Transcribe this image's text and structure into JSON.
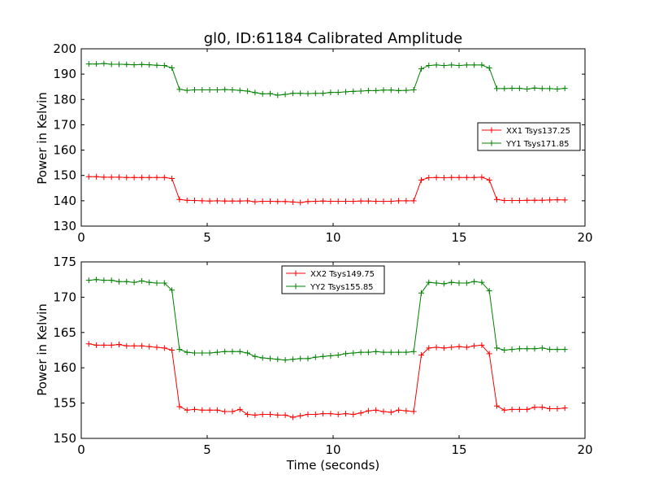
{
  "chart_data": [
    {
      "type": "line",
      "title": "gl0, ID:61184 Calibrated Amplitude",
      "xlabel": "",
      "ylabel": "Power in Kelvin",
      "xlim": [
        0,
        20
      ],
      "ylim": [
        130,
        200
      ],
      "xticks": [
        0,
        5,
        10,
        15,
        20
      ],
      "yticks": [
        130,
        140,
        150,
        160,
        170,
        180,
        190,
        200
      ],
      "grid": false,
      "legend_position": "center-right",
      "x": [
        0.3,
        0.6,
        0.9,
        1.2,
        1.5,
        1.8,
        2.1,
        2.4,
        2.7,
        3.0,
        3.3,
        3.6,
        3.9,
        4.2,
        4.5,
        4.8,
        5.1,
        5.4,
        5.7,
        6.0,
        6.3,
        6.6,
        6.9,
        7.2,
        7.5,
        7.8,
        8.1,
        8.4,
        8.7,
        9.0,
        9.3,
        9.6,
        9.9,
        10.2,
        10.5,
        10.8,
        11.1,
        11.4,
        11.7,
        12.0,
        12.3,
        12.6,
        12.9,
        13.2,
        13.5,
        13.8,
        14.1,
        14.4,
        14.7,
        15.0,
        15.3,
        15.6,
        15.9,
        16.2,
        16.5,
        16.8,
        17.1,
        17.4,
        17.7,
        18.0,
        18.3,
        18.6,
        18.9,
        19.2
      ],
      "series": [
        {
          "name": "XX1 Tsys137.25",
          "color": "#ff0000",
          "values": [
            149.5,
            149.5,
            149.3,
            149.3,
            149.3,
            149.2,
            149.2,
            149.2,
            149.2,
            149.2,
            149.2,
            148.8,
            140.5,
            140.2,
            140.1,
            140.0,
            139.9,
            140.0,
            139.9,
            139.9,
            139.9,
            140.0,
            139.6,
            139.8,
            139.8,
            139.7,
            139.7,
            139.5,
            139.3,
            139.7,
            139.8,
            139.9,
            139.8,
            139.8,
            139.8,
            139.8,
            139.9,
            139.9,
            139.8,
            139.8,
            139.8,
            140.0,
            140.0,
            140.0,
            148.2,
            149.1,
            149.2,
            149.1,
            149.2,
            149.2,
            149.2,
            149.2,
            149.3,
            148.2,
            140.5,
            140.1,
            140.1,
            140.1,
            140.2,
            140.2,
            140.2,
            140.3,
            140.4,
            140.3
          ]
        },
        {
          "name": "YY1 Tsys171.85",
          "color": "#008000",
          "values": [
            194.0,
            194.0,
            194.2,
            193.9,
            193.9,
            193.8,
            193.7,
            193.8,
            193.7,
            193.5,
            193.4,
            192.5,
            184.0,
            183.6,
            183.8,
            183.8,
            183.8,
            183.8,
            183.9,
            183.8,
            183.6,
            183.3,
            182.7,
            182.2,
            182.3,
            181.7,
            182.0,
            182.4,
            182.4,
            182.3,
            182.4,
            182.4,
            182.8,
            182.8,
            183.0,
            183.2,
            183.3,
            183.5,
            183.5,
            183.7,
            183.7,
            183.5,
            183.6,
            183.8,
            192.1,
            193.4,
            193.6,
            193.4,
            193.6,
            193.4,
            193.6,
            193.6,
            193.6,
            192.4,
            184.3,
            184.3,
            184.4,
            184.4,
            184.1,
            184.5,
            184.3,
            184.3,
            184.1,
            184.4
          ]
        }
      ]
    },
    {
      "type": "line",
      "title": "",
      "xlabel": "Time (seconds)",
      "ylabel": "Power in Kelvin",
      "xlim": [
        0,
        20
      ],
      "ylim": [
        150,
        175
      ],
      "xticks": [
        0,
        5,
        10,
        15,
        20
      ],
      "yticks": [
        150,
        155,
        160,
        165,
        170,
        175
      ],
      "grid": false,
      "legend_position": "top-center",
      "x": [
        0.3,
        0.6,
        0.9,
        1.2,
        1.5,
        1.8,
        2.1,
        2.4,
        2.7,
        3.0,
        3.3,
        3.6,
        3.9,
        4.2,
        4.5,
        4.8,
        5.1,
        5.4,
        5.7,
        6.0,
        6.3,
        6.6,
        6.9,
        7.2,
        7.5,
        7.8,
        8.1,
        8.4,
        8.7,
        9.0,
        9.3,
        9.6,
        9.9,
        10.2,
        10.5,
        10.8,
        11.1,
        11.4,
        11.7,
        12.0,
        12.3,
        12.6,
        12.9,
        13.2,
        13.5,
        13.8,
        14.1,
        14.4,
        14.7,
        15.0,
        15.3,
        15.6,
        15.9,
        16.2,
        16.5,
        16.8,
        17.1,
        17.4,
        17.7,
        18.0,
        18.3,
        18.6,
        18.9,
        19.2
      ],
      "series": [
        {
          "name": "XX2 Tsys149.75",
          "color": "#ff0000",
          "values": [
            163.4,
            163.2,
            163.2,
            163.2,
            163.3,
            163.1,
            163.1,
            163.1,
            163.0,
            162.9,
            162.8,
            162.5,
            154.5,
            154.0,
            154.1,
            154.0,
            154.0,
            154.0,
            153.8,
            153.8,
            154.1,
            153.4,
            153.3,
            153.4,
            153.4,
            153.3,
            153.3,
            153.0,
            153.2,
            153.4,
            153.4,
            153.5,
            153.5,
            153.4,
            153.5,
            153.4,
            153.6,
            153.9,
            154.0,
            153.8,
            153.7,
            154.0,
            153.9,
            153.8,
            161.8,
            162.8,
            162.9,
            162.8,
            162.9,
            163.0,
            162.9,
            163.1,
            163.2,
            162.0,
            154.6,
            154.0,
            154.1,
            154.1,
            154.1,
            154.4,
            154.4,
            154.2,
            154.2,
            154.3
          ]
        },
        {
          "name": "YY2 Tsys155.85",
          "color": "#008000",
          "values": [
            172.4,
            172.5,
            172.4,
            172.4,
            172.2,
            172.2,
            172.1,
            172.3,
            172.1,
            172.0,
            172.0,
            171.0,
            162.6,
            162.2,
            162.1,
            162.1,
            162.1,
            162.2,
            162.3,
            162.3,
            162.3,
            162.1,
            161.6,
            161.4,
            161.3,
            161.2,
            161.1,
            161.2,
            161.3,
            161.3,
            161.5,
            161.6,
            161.7,
            161.8,
            162.0,
            162.1,
            162.2,
            162.2,
            162.3,
            162.2,
            162.2,
            162.2,
            162.2,
            162.3,
            170.6,
            172.1,
            172.0,
            171.9,
            172.1,
            172.0,
            172.0,
            172.2,
            172.1,
            170.9,
            162.8,
            162.5,
            162.6,
            162.7,
            162.7,
            162.7,
            162.8,
            162.6,
            162.6,
            162.6
          ]
        }
      ]
    }
  ]
}
